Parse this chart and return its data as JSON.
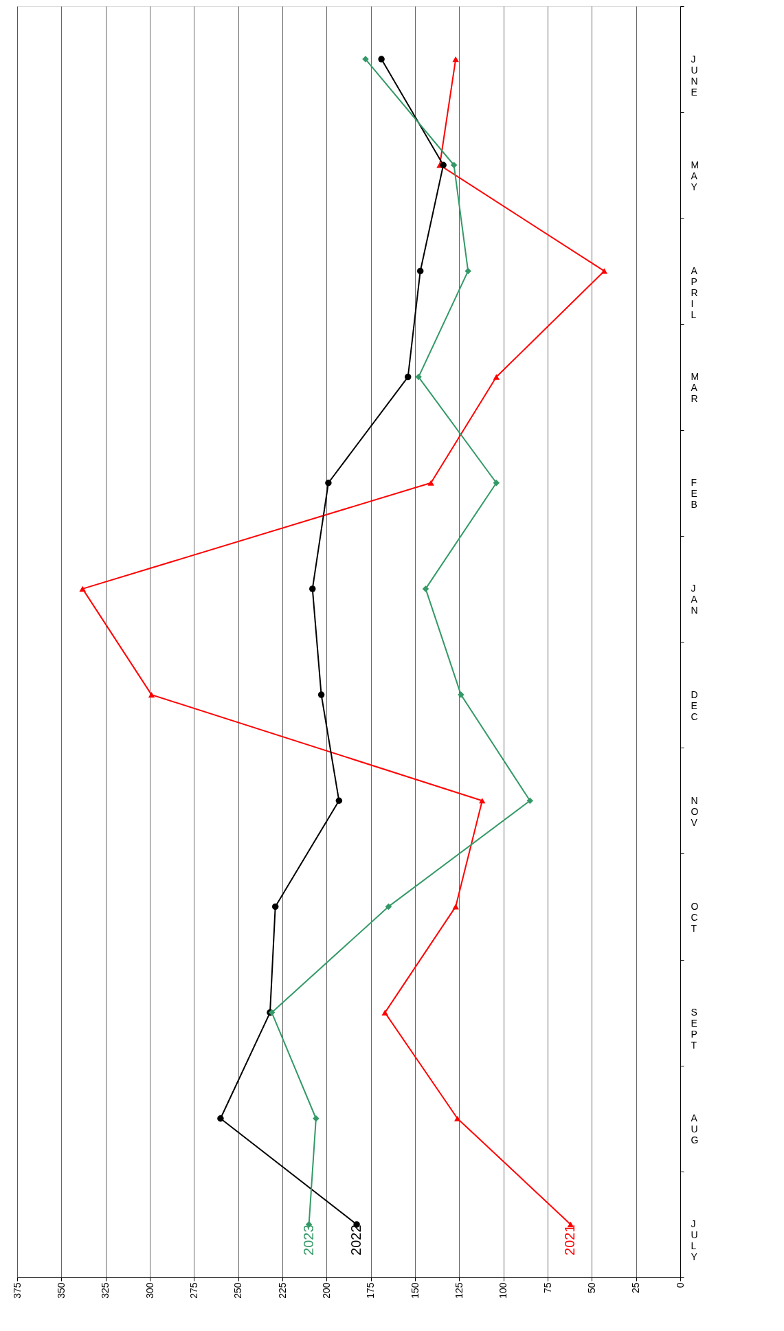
{
  "chart_data": {
    "type": "line",
    "orientation": "horizontal",
    "categories": [
      "JUNE",
      "MAY",
      "APRIL",
      "MAR",
      "FEB",
      "JAN",
      "DEC",
      "NOV",
      "OCT",
      "SEPT",
      "AUG",
      "JULY"
    ],
    "series": [
      {
        "name": "2021",
        "color": "#ff0000",
        "marker": "triangle",
        "values": [
          127,
          136,
          43,
          104,
          141,
          338,
          299,
          112,
          127,
          167,
          126,
          62
        ]
      },
      {
        "name": "2022",
        "color": "#000000",
        "marker": "circle",
        "values": [
          169,
          134,
          147,
          154,
          199,
          208,
          203,
          193,
          229,
          232,
          260,
          183
        ]
      },
      {
        "name": "2023",
        "color": "#339966",
        "marker": "diamond",
        "values": [
          178,
          128,
          120,
          148,
          104,
          144,
          124,
          85,
          165,
          231,
          206,
          210
        ]
      }
    ],
    "xlim": [
      375,
      0
    ],
    "xticks": [
      0,
      25,
      50,
      75,
      100,
      125,
      150,
      175,
      200,
      225,
      250,
      275,
      300,
      325,
      350,
      375
    ],
    "grid": "x",
    "legend": false
  }
}
